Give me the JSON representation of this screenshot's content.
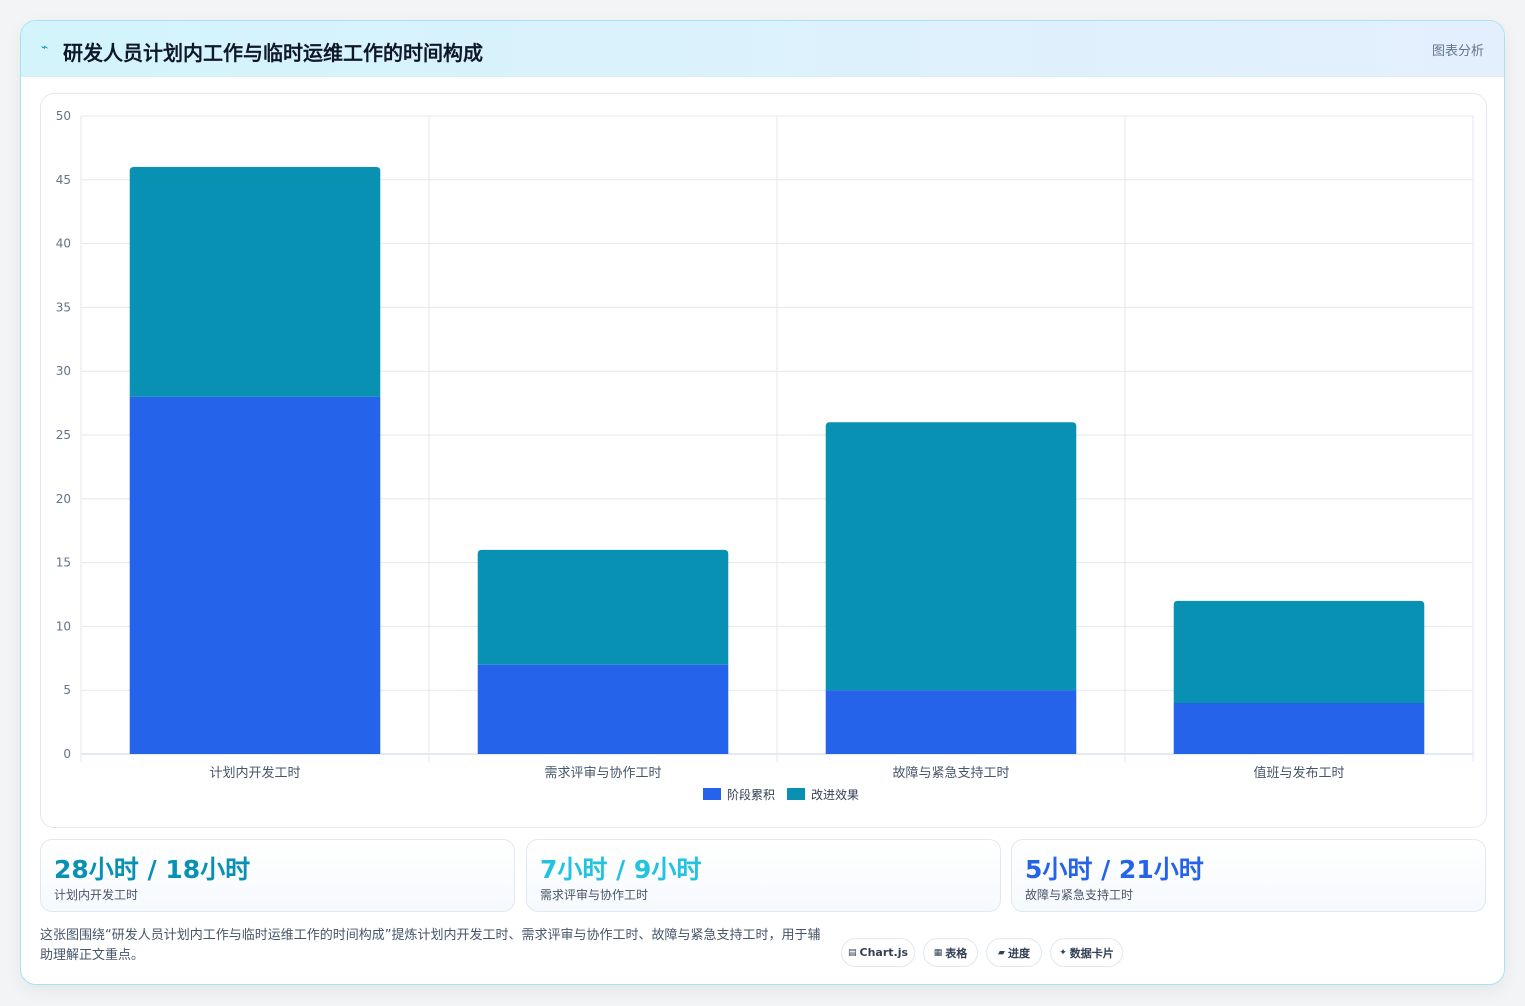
{
  "header": {
    "icon": "pulse-icon",
    "title": "研发人员计划内工作与临时运维工作的时间构成",
    "tag": "图表分析"
  },
  "chart_data": {
    "type": "bar",
    "stacked": true,
    "categories": [
      "计划内开发工时",
      "需求评审与协作工时",
      "故障与紧急支持工时",
      "值班与发布工时"
    ],
    "series": [
      {
        "name": "阶段累积",
        "values": [
          28,
          7,
          5,
          4
        ],
        "color": "#2563eb"
      },
      {
        "name": "改进效果",
        "values": [
          18,
          9,
          21,
          8
        ],
        "color": "#0891b2"
      }
    ],
    "ylim": [
      0,
      50
    ],
    "yticks": [
      0,
      5,
      10,
      15,
      20,
      25,
      30,
      35,
      40,
      45,
      50
    ],
    "grid": true,
    "legend": "bottom"
  },
  "stats": [
    {
      "value": "28小时 / 18小时",
      "label": "计划内开发工时",
      "color": "#0891b2"
    },
    {
      "value": "7小时 / 9小时",
      "label": "需求评审与协作工时",
      "color": "#22c3e0"
    },
    {
      "value": "5小时 / 21小时",
      "label": "故障与紧急支持工时",
      "color": "#2563eb"
    }
  ],
  "footer": {
    "description": "这张图围绕“研发人员计划内工作与临时运维工作的时间构成”提炼计划内开发工时、需求评审与协作工时、故障与紧急支持工时，用于辅助理解正文重点。",
    "pills": [
      {
        "icon": "▤",
        "label": "Chart.js"
      },
      {
        "icon": "▦",
        "label": "表格"
      },
      {
        "icon": "▰",
        "label": "进度"
      },
      {
        "icon": "✦",
        "label": "数据卡片"
      }
    ]
  }
}
